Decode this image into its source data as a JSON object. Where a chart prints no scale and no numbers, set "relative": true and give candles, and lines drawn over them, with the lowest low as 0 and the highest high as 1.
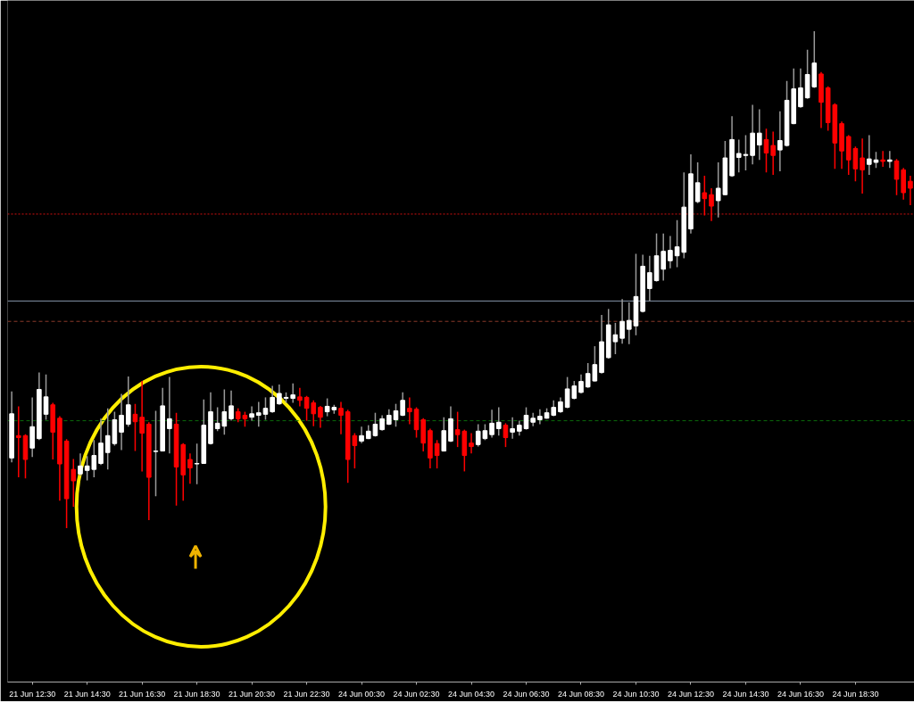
{
  "chart_data": {
    "type": "candlestick",
    "relative": true,
    "categories": [
      null,
      null,
      null,
      "21 Jun 12:30",
      null,
      null,
      null,
      null,
      null,
      null,
      null,
      "21 Jun 14:30",
      null,
      null,
      null,
      null,
      null,
      null,
      null,
      "21 Jun 16:30",
      null,
      null,
      null,
      null,
      null,
      null,
      null,
      "21 Jun 18:30",
      null,
      null,
      null,
      null,
      null,
      null,
      null,
      "21 Jun 20:30",
      null,
      null,
      null,
      null,
      null,
      null,
      null,
      "21 Jun 22:30",
      null,
      null,
      null,
      null,
      null,
      null,
      null,
      "24 Jun 00:30",
      null,
      null,
      null,
      null,
      null,
      null,
      null,
      "24 Jun 02:30",
      null,
      null,
      null,
      null,
      null,
      null,
      null,
      "24 Jun 04:30",
      null,
      null,
      null,
      null,
      null,
      null,
      null,
      "24 Jun 06:30",
      null,
      null,
      null,
      null,
      null,
      null,
      null,
      "24 Jun 08:30",
      null,
      null,
      null,
      null,
      null,
      null,
      null,
      "24 Jun 10:30",
      null,
      null,
      null,
      null,
      null,
      null,
      null,
      "24 Jun 12:30",
      null,
      null,
      null,
      null,
      null,
      null,
      null,
      "24 Jun 14:30",
      null,
      null,
      null,
      null,
      null,
      null,
      null,
      "24 Jun 16:30",
      null,
      null,
      null,
      null,
      null,
      null,
      null,
      "24 Jun 18:30",
      null,
      null,
      null,
      null,
      null,
      null,
      null,
      null
    ],
    "ohlc": [
      [
        0.141,
        0.275,
        0.132,
        0.23
      ],
      [
        0.186,
        0.245,
        0.102,
        0.182
      ],
      [
        0.186,
        0.189,
        0.1,
        0.138
      ],
      [
        0.161,
        0.263,
        0.143,
        0.204
      ],
      [
        0.18,
        0.313,
        0.177,
        0.279
      ],
      [
        0.229,
        0.309,
        0.218,
        0.264
      ],
      [
        0.248,
        0.252,
        0.138,
        0.193
      ],
      [
        0.221,
        0.225,
        0.055,
        0.129
      ],
      [
        0.175,
        0.179,
        0,
        0.059
      ],
      [
        0.118,
        0.139,
        0.043,
        0.095
      ],
      [
        0.109,
        0.15,
        0.105,
        0.125
      ],
      [
        0.116,
        0.145,
        0.096,
        0.125
      ],
      [
        0.118,
        0.177,
        0.102,
        0.146
      ],
      [
        0.13,
        0.22,
        0.127,
        0.171
      ],
      [
        0.152,
        0.241,
        0.118,
        0.186
      ],
      [
        0.17,
        0.234,
        0.166,
        0.218
      ],
      [
        0.193,
        0.27,
        0.157,
        0.227
      ],
      [
        0.209,
        0.305,
        0.204,
        0.248
      ],
      [
        0.229,
        0.25,
        0.155,
        0.214
      ],
      [
        0.223,
        0.296,
        0.114,
        0.191
      ],
      [
        0.209,
        0.213,
        0.016,
        0.102
      ],
      [
        0.154,
        0.236,
        0.064,
        0.155
      ],
      [
        0.155,
        0.282,
        0.154,
        0.246
      ],
      [
        0.2,
        0.304,
        0.15,
        0.22
      ],
      [
        0.209,
        0.232,
        0.045,
        0.123
      ],
      [
        0.168,
        0.171,
        0.055,
        0.107
      ],
      [
        0.138,
        0.15,
        0.089,
        0.121
      ],
      [
        0.129,
        0.17,
        0.088,
        0.13
      ],
      [
        0.13,
        0.259,
        0.129,
        0.207
      ],
      [
        0.17,
        0.273,
        0.168,
        0.234
      ],
      [
        0.2,
        0.243,
        0.195,
        0.211
      ],
      [
        0.205,
        0.279,
        0.188,
        0.234
      ],
      [
        0.22,
        0.277,
        0.216,
        0.246
      ],
      [
        0.234,
        0.241,
        0.213,
        0.22
      ],
      [
        0.227,
        0.234,
        0.204,
        0.22
      ],
      [
        0.223,
        0.245,
        0.216,
        0.23
      ],
      [
        0.227,
        0.254,
        0.204,
        0.232
      ],
      [
        0.229,
        0.263,
        0.218,
        0.241
      ],
      [
        0.234,
        0.286,
        0.232,
        0.263
      ],
      [
        0.25,
        0.289,
        0.248,
        0.271
      ],
      [
        0.261,
        0.273,
        0.252,
        0.263
      ],
      [
        0.261,
        0.291,
        0.252,
        0.268
      ],
      [
        0.264,
        0.282,
        0.245,
        0.257
      ],
      [
        0.263,
        0.266,
        0.216,
        0.241
      ],
      [
        0.252,
        0.257,
        0.205,
        0.23
      ],
      [
        0.243,
        0.246,
        0.202,
        0.223
      ],
      [
        0.234,
        0.261,
        0.225,
        0.245
      ],
      [
        0.238,
        0.248,
        0.23,
        0.243
      ],
      [
        0.241,
        0.254,
        0.189,
        0.227
      ],
      [
        0.234,
        0.238,
        0.091,
        0.138
      ],
      [
        0.186,
        0.191,
        0.12,
        0.166
      ],
      [
        0.175,
        0.204,
        0.171,
        0.186
      ],
      [
        0.18,
        0.207,
        0.179,
        0.195
      ],
      [
        0.186,
        0.232,
        0.184,
        0.209
      ],
      [
        0.198,
        0.227,
        0.196,
        0.22
      ],
      [
        0.209,
        0.239,
        0.207,
        0.227
      ],
      [
        0.218,
        0.25,
        0.204,
        0.236
      ],
      [
        0.227,
        0.273,
        0.225,
        0.257
      ],
      [
        0.241,
        0.263,
        0.209,
        0.234
      ],
      [
        0.239,
        0.243,
        0.182,
        0.198
      ],
      [
        0.218,
        0.221,
        0.154,
        0.171
      ],
      [
        0.196,
        0.2,
        0.12,
        0.141
      ],
      [
        0.17,
        0.177,
        0.12,
        0.146
      ],
      [
        0.155,
        0.223,
        0.154,
        0.196
      ],
      [
        0.175,
        0.245,
        0.173,
        0.22
      ],
      [
        0.198,
        0.234,
        0.163,
        0.188
      ],
      [
        0.195,
        0.198,
        0.114,
        0.146
      ],
      [
        0.171,
        0.191,
        0.15,
        0.164
      ],
      [
        0.168,
        0.209,
        0.164,
        0.195
      ],
      [
        0.18,
        0.209,
        0.177,
        0.196
      ],
      [
        0.188,
        0.238,
        0.182,
        0.211
      ],
      [
        0.2,
        0.243,
        0.186,
        0.213
      ],
      [
        0.207,
        0.211,
        0.163,
        0.182
      ],
      [
        0.193,
        0.223,
        0.18,
        0.2
      ],
      [
        0.195,
        0.216,
        0.186,
        0.207
      ],
      [
        0.2,
        0.243,
        0.198,
        0.227
      ],
      [
        0.213,
        0.232,
        0.205,
        0.221
      ],
      [
        0.218,
        0.239,
        0.209,
        0.225
      ],
      [
        0.221,
        0.241,
        0.22,
        0.232
      ],
      [
        0.227,
        0.257,
        0.225,
        0.243
      ],
      [
        0.234,
        0.263,
        0.232,
        0.254
      ],
      [
        0.243,
        0.304,
        0.241,
        0.28
      ],
      [
        0.261,
        0.296,
        0.259,
        0.286
      ],
      [
        0.273,
        0.309,
        0.271,
        0.295
      ],
      [
        0.284,
        0.332,
        0.282,
        0.311
      ],
      [
        0.296,
        0.366,
        0.295,
        0.329
      ],
      [
        0.313,
        0.429,
        0.311,
        0.375
      ],
      [
        0.343,
        0.441,
        0.341,
        0.409
      ],
      [
        0.375,
        0.413,
        0.35,
        0.389
      ],
      [
        0.382,
        0.461,
        0.371,
        0.416
      ],
      [
        0.4,
        0.454,
        0.37,
        0.418
      ],
      [
        0.407,
        0.552,
        0.388,
        0.466
      ],
      [
        0.436,
        0.55,
        0.434,
        0.527
      ],
      [
        0.482,
        0.548,
        0.457,
        0.514
      ],
      [
        0.498,
        0.593,
        0.496,
        0.548
      ],
      [
        0.521,
        0.593,
        0.498,
        0.557
      ],
      [
        0.538,
        0.588,
        0.523,
        0.559
      ],
      [
        0.548,
        0.62,
        0.525,
        0.566
      ],
      [
        0.555,
        0.716,
        0.543,
        0.646
      ],
      [
        0.602,
        0.752,
        0.593,
        0.713
      ],
      [
        0.657,
        0.736,
        0.654,
        0.695
      ],
      [
        0.675,
        0.709,
        0.629,
        0.663
      ],
      [
        0.671,
        0.684,
        0.618,
        0.648
      ],
      [
        0.659,
        0.736,
        0.625,
        0.684
      ],
      [
        0.671,
        0.779,
        0.67,
        0.745
      ],
      [
        0.709,
        0.829,
        0.707,
        0.782
      ],
      [
        0.746,
        0.782,
        0.716,
        0.754
      ],
      [
        0.75,
        0.791,
        0.72,
        0.752
      ],
      [
        0.75,
        0.852,
        0.732,
        0.795
      ],
      [
        0.771,
        0.843,
        0.741,
        0.795
      ],
      [
        0.782,
        0.804,
        0.716,
        0.755
      ],
      [
        0.77,
        0.798,
        0.711,
        0.75
      ],
      [
        0.761,
        0.839,
        0.718,
        0.78
      ],
      [
        0.77,
        0.9,
        0.768,
        0.861
      ],
      [
        0.814,
        0.925,
        0.813,
        0.884
      ],
      [
        0.848,
        0.925,
        0.846,
        0.886
      ],
      [
        0.866,
        0.963,
        0.864,
        0.913
      ],
      [
        0.888,
        1,
        0.886,
        0.936
      ],
      [
        0.914,
        0.918,
        0.805,
        0.857
      ],
      [
        0.886,
        0.889,
        0.8,
        0.816
      ],
      [
        0.852,
        0.855,
        0.723,
        0.775
      ],
      [
        0.814,
        0.818,
        0.723,
        0.759
      ],
      [
        0.788,
        0.791,
        0.711,
        0.741
      ],
      [
        0.764,
        0.768,
        0.698,
        0.723
      ],
      [
        0.745,
        0.784,
        0.673,
        0.721
      ],
      [
        0.732,
        0.791,
        0.711,
        0.743
      ],
      [
        0.736,
        0.757,
        0.725,
        0.741
      ],
      [
        0.741,
        0.759,
        0.727,
        0.738
      ],
      [
        0.738,
        0.759,
        0.725,
        0.741
      ],
      [
        0.739,
        0.743,
        0.67,
        0.702
      ],
      [
        0.721,
        0.725,
        0.661,
        0.675
      ],
      [
        0.698,
        0.709,
        0.65,
        0.684
      ]
    ],
    "colors": [
      "#ffffff",
      "#ff0000",
      "#ff0000",
      "#ffffff",
      "#ffffff",
      "#ffffff",
      "#ff0000",
      "#ff0000",
      "#ff0000",
      "#ff0000",
      "#ffffff",
      "#ffffff",
      "#ffffff",
      "#ffffff",
      "#ffffff",
      "#ffffff",
      "#ffffff",
      "#ffffff",
      "#ff0000",
      "#ff0000",
      "#ff0000",
      "#ffffff",
      "#ffffff",
      "#ffffff",
      "#ff0000",
      "#ff0000",
      "#ff0000",
      "#ffffff",
      "#ffffff",
      "#ffffff",
      "#ffffff",
      "#ffffff",
      "#ffffff",
      "#ff0000",
      "#ff0000",
      "#ffffff",
      "#ffffff",
      "#ffffff",
      "#ffffff",
      "#ffffff",
      "#ffffff",
      "#ffffff",
      "#ff0000",
      "#ff0000",
      "#ff0000",
      "#ff0000",
      "#ffffff",
      "#ffffff",
      "#ff0000",
      "#ff0000",
      "#ff0000",
      "#ffffff",
      "#ffffff",
      "#ffffff",
      "#ffffff",
      "#ffffff",
      "#ffffff",
      "#ffffff",
      "#ff0000",
      "#ff0000",
      "#ff0000",
      "#ff0000",
      "#ff0000",
      "#ffffff",
      "#ffffff",
      "#ff0000",
      "#ff0000",
      "#ff0000",
      "#ffffff",
      "#ffffff",
      "#ffffff",
      "#ffffff",
      "#ff0000",
      "#ffffff",
      "#ffffff",
      "#ffffff",
      "#ffffff",
      "#ffffff",
      "#ffffff",
      "#ffffff",
      "#ffffff",
      "#ffffff",
      "#ffffff",
      "#ffffff",
      "#ffffff",
      "#ffffff",
      "#ffffff",
      "#ffffff",
      "#ffffff",
      "#ffffff",
      "#ffffff",
      "#ffffff",
      "#ffffff",
      "#ffffff",
      "#ffffff",
      "#ffffff",
      "#ffffff",
      "#ffffff",
      "#ffffff",
      "#ffffff",
      "#ffffff",
      "#ff0000",
      "#ff0000",
      "#ffffff",
      "#ffffff",
      "#ffffff",
      "#ffffff",
      "#ffffff",
      "#ffffff",
      "#ffffff",
      "#ff0000",
      "#ff0000",
      "#ffffff",
      "#ffffff",
      "#ffffff",
      "#ffffff",
      "#ffffff",
      "#ffffff",
      "#ff0000",
      "#ff0000",
      "#ff0000",
      "#ff0000",
      "#ff0000",
      "#ff0000",
      "#ff0000",
      "#ffffff",
      "#ffffff",
      "#ff0000",
      "#ffffff",
      "#ff0000",
      "#ff0000",
      "#ff0000"
    ],
    "ref_lines": [
      {
        "axis": "y",
        "value": 0.632,
        "color": "#d01010",
        "line_style": "dotted"
      },
      {
        "axis": "y",
        "value": 0.457,
        "color": "#8494a8",
        "line_style": "solid"
      },
      {
        "axis": "y",
        "value": 0.416,
        "color": "#8b3a2a",
        "line_style": "dashed"
      },
      {
        "axis": "y",
        "value": 0.216,
        "color": "#0a6a0a",
        "line_style": "dashed"
      }
    ]
  }
}
